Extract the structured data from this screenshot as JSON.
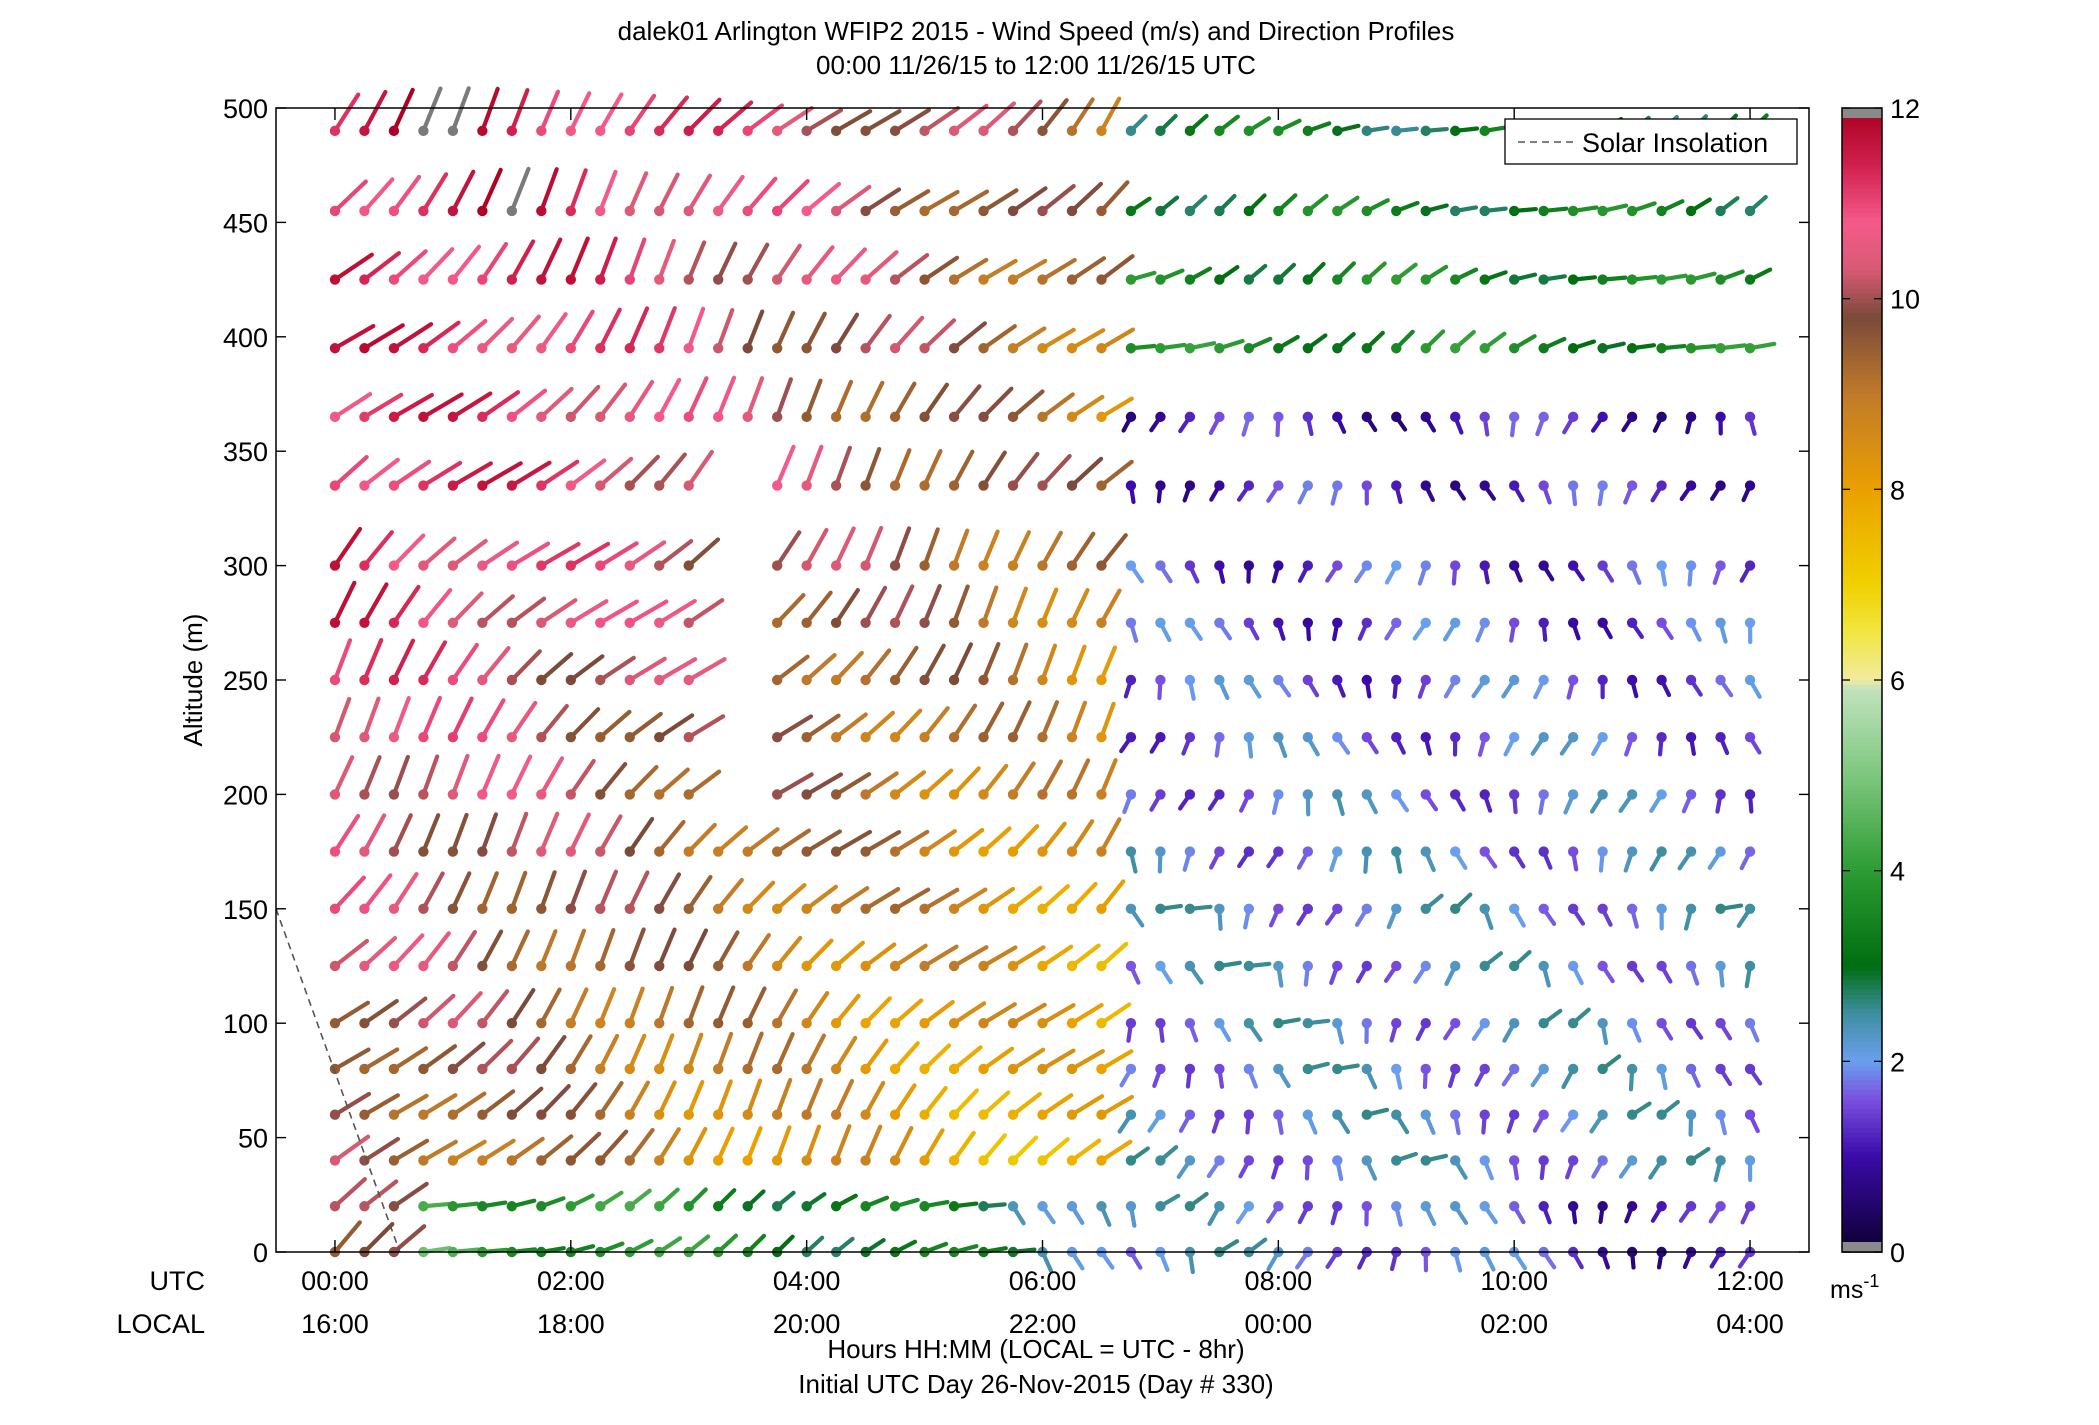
{
  "chart_data": {
    "type": "wind-barb-profile",
    "title": "dalek01 Arlington WFIP2 2015 - Wind Speed (m/s) and Direction Profiles",
    "subtitle": "00:00 11/26/15 to 12:00 11/26/15  UTC",
    "ylabel": "Altitude (m)",
    "xlabel": "Hours HH:MM  (LOCAL = UTC - 8hr)",
    "xlabel2": "Initial UTC Day 26-Nov-2015 (Day # 330)",
    "row_label_utc": "UTC",
    "row_label_local": "LOCAL",
    "x_ticks_utc": [
      "00:00",
      "02:00",
      "04:00",
      "06:00",
      "08:00",
      "10:00",
      "12:00"
    ],
    "x_ticks_local": [
      "16:00",
      "18:00",
      "20:00",
      "22:00",
      "00:00",
      "02:00",
      "04:00"
    ],
    "x_tick_hours": [
      0,
      2,
      4,
      6,
      8,
      10,
      12
    ],
    "xlim_hours": [
      -0.5,
      12.5
    ],
    "ylim": [
      0,
      500
    ],
    "y_ticks": [
      0,
      50,
      100,
      150,
      200,
      250,
      300,
      350,
      400,
      450,
      500
    ],
    "grid": false,
    "legend": {
      "placement": "top-right",
      "entries": [
        "Solar Insolation"
      ]
    },
    "colorbar": {
      "unit_label": "ms-1",
      "ticks": [
        0,
        2,
        4,
        6,
        8,
        10,
        12
      ],
      "range": [
        0,
        12
      ],
      "gray_above": 12,
      "gray_below": 0,
      "stops": [
        {
          "v": 0.0,
          "c": "#0d0030"
        },
        {
          "v": 1.0,
          "c": "#3a0aa8"
        },
        {
          "v": 1.6,
          "c": "#7a50e0"
        },
        {
          "v": 2.0,
          "c": "#6aa0ee"
        },
        {
          "v": 2.5,
          "c": "#3f8ea0"
        },
        {
          "v": 3.0,
          "c": "#006d10"
        },
        {
          "v": 4.0,
          "c": "#2d9c33"
        },
        {
          "v": 5.0,
          "c": "#7ec77e"
        },
        {
          "v": 5.9,
          "c": "#c0e2bd"
        },
        {
          "v": 6.0,
          "c": "#f2eaa0"
        },
        {
          "v": 6.5,
          "c": "#f2e640"
        },
        {
          "v": 7.0,
          "c": "#f0d000"
        },
        {
          "v": 8.0,
          "c": "#eaa000"
        },
        {
          "v": 9.0,
          "c": "#c07a2a"
        },
        {
          "v": 9.8,
          "c": "#7a4a3a"
        },
        {
          "v": 10.3,
          "c": "#d85a74"
        },
        {
          "v": 10.8,
          "c": "#f45a8a"
        },
        {
          "v": 11.4,
          "c": "#d0204e"
        },
        {
          "v": 12.0,
          "c": "#a8001e"
        }
      ]
    },
    "levels_m": [
      0,
      20,
      40,
      60,
      80,
      100,
      125,
      150,
      175,
      200,
      225,
      250,
      275,
      300,
      335,
      365,
      395,
      425,
      455,
      490
    ],
    "time_step_hours": 0.25,
    "solar_insolation_line": {
      "x": [
        -0.5,
        0.55
      ],
      "y": [
        150,
        0
      ]
    },
    "note_missing": "columns 13-14 missing at mid-levels (about 200-340 m)"
  }
}
